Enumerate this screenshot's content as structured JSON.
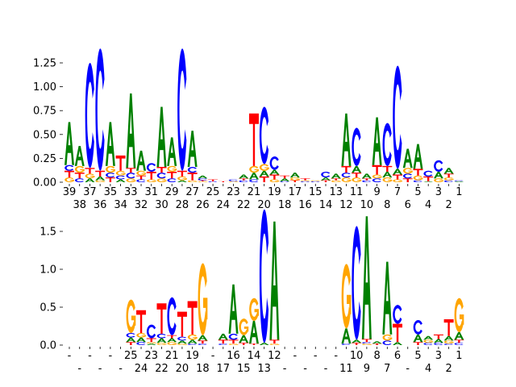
{
  "colors": {
    "A": "#008000",
    "C": "#0000ff",
    "G": "#ffa500",
    "T": "#ff0000"
  },
  "chart_data": [
    {
      "type": "logo",
      "ylim": [
        0,
        1.45
      ],
      "yticks": [
        "0.00",
        "0.25",
        "0.50",
        "0.75",
        "1.00",
        "1.25"
      ],
      "ytick_values": [
        0,
        0.25,
        0.5,
        0.75,
        1.0,
        1.25
      ],
      "xlabels": [
        "39",
        "38",
        "37",
        "36",
        "35",
        "34",
        "33",
        "32",
        "31",
        "30",
        "29",
        "28",
        "27",
        "26",
        "25",
        "24",
        "23",
        "22",
        "21",
        "20",
        "19",
        "18",
        "17",
        "16",
        "15",
        "14",
        "13",
        "12",
        "11",
        "10",
        "9",
        "8",
        "7",
        "6",
        "5",
        "4",
        "3",
        "2",
        "1"
      ],
      "stacks": [
        [
          [
            "G",
            0.05
          ],
          [
            "T",
            0.07
          ],
          [
            "C",
            0.06
          ],
          [
            "A",
            0.45
          ]
        ],
        [
          [
            "C",
            0.04
          ],
          [
            "T",
            0.06
          ],
          [
            "G",
            0.07
          ],
          [
            "A",
            0.21
          ]
        ],
        [
          [
            "A",
            0.04
          ],
          [
            "G",
            0.05
          ],
          [
            "T",
            0.06
          ],
          [
            "C",
            1.1
          ]
        ],
        [
          [
            "G",
            0.02
          ],
          [
            "A",
            0.04
          ],
          [
            "T",
            0.06
          ],
          [
            "C",
            1.28
          ]
        ],
        [
          [
            "T",
            0.05
          ],
          [
            "C",
            0.05
          ],
          [
            "G",
            0.07
          ],
          [
            "A",
            0.46
          ]
        ],
        [
          [
            "A",
            0.03
          ],
          [
            "C",
            0.04
          ],
          [
            "G",
            0.05
          ],
          [
            "T",
            0.16
          ]
        ],
        [
          [
            "G",
            0.04
          ],
          [
            "C",
            0.06
          ],
          [
            "T",
            0.05
          ],
          [
            "A",
            0.78
          ]
        ],
        [
          [
            "C",
            0.03
          ],
          [
            "T",
            0.04
          ],
          [
            "G",
            0.05
          ],
          [
            "A",
            0.21
          ]
        ],
        [
          [
            "G",
            0.03
          ],
          [
            "T",
            0.08
          ],
          [
            "C",
            0.09
          ]
        ],
        [
          [
            "G",
            0.04
          ],
          [
            "C",
            0.06
          ],
          [
            "T",
            0.06
          ],
          [
            "A",
            0.63
          ]
        ],
        [
          [
            "C",
            0.04
          ],
          [
            "T",
            0.07
          ],
          [
            "G",
            0.06
          ],
          [
            "A",
            0.3
          ]
        ],
        [
          [
            "A",
            0.02
          ],
          [
            "G",
            0.04
          ],
          [
            "T",
            0.06
          ],
          [
            "C",
            1.28
          ]
        ],
        [
          [
            "G",
            0.02
          ],
          [
            "T",
            0.08
          ],
          [
            "C",
            0.06
          ],
          [
            "A",
            0.38
          ]
        ],
        [
          [
            "G",
            0.01
          ],
          [
            "T",
            0.01
          ],
          [
            "C",
            0.02
          ],
          [
            "A",
            0.03
          ]
        ],
        [
          [
            "C",
            0.01
          ],
          [
            "T",
            0.02
          ]
        ],
        [
          [
            "T",
            0.01
          ]
        ],
        [
          [
            "G",
            0.01
          ],
          [
            "C",
            0.02
          ]
        ],
        [
          [
            "C",
            0.02
          ],
          [
            "T",
            0.02
          ],
          [
            "A",
            0.04
          ]
        ],
        [
          [
            "C",
            0.03
          ],
          [
            "A",
            0.07
          ],
          [
            "G",
            0.07
          ],
          [
            "T",
            0.55
          ]
        ],
        [
          [
            "T",
            0.06
          ],
          [
            "A",
            0.06
          ],
          [
            "G",
            0.07
          ],
          [
            "C",
            0.6
          ]
        ],
        [
          [
            "G",
            0.03
          ],
          [
            "T",
            0.05
          ],
          [
            "A",
            0.05
          ],
          [
            "C",
            0.14
          ]
        ],
        [
          [
            "C",
            0.01
          ],
          [
            "A",
            0.03
          ],
          [
            "T",
            0.03
          ]
        ],
        [
          [
            "T",
            0.02
          ],
          [
            "G",
            0.03
          ],
          [
            "A",
            0.05
          ]
        ],
        [
          [
            "C",
            0.01
          ],
          [
            "G",
            0.01
          ],
          [
            "T",
            0.02
          ]
        ],
        [
          [
            "C",
            0.01
          ],
          [
            "G",
            0.01
          ]
        ],
        [
          [
            "T",
            0.02
          ],
          [
            "A",
            0.03
          ],
          [
            "C",
            0.06
          ]
        ],
        [
          [
            "G",
            0.02
          ],
          [
            "T",
            0.02
          ],
          [
            "A",
            0.05
          ]
        ],
        [
          [
            "G",
            0.05
          ],
          [
            "C",
            0.05
          ],
          [
            "T",
            0.07
          ],
          [
            "A",
            0.55
          ]
        ],
        [
          [
            "G",
            0.05
          ],
          [
            "T",
            0.05
          ],
          [
            "A",
            0.07
          ],
          [
            "C",
            0.4
          ]
        ],
        [
          [
            "C",
            0.02
          ],
          [
            "T",
            0.02
          ],
          [
            "A",
            0.05
          ]
        ],
        [
          [
            "C",
            0.04
          ],
          [
            "G",
            0.04
          ],
          [
            "T",
            0.1
          ],
          [
            "A",
            0.5
          ]
        ],
        [
          [
            "G",
            0.05
          ],
          [
            "A",
            0.06
          ],
          [
            "T",
            0.06
          ],
          [
            "C",
            0.45
          ]
        ],
        [
          [
            "G",
            0.03
          ],
          [
            "T",
            0.05
          ],
          [
            "A",
            0.06
          ],
          [
            "C",
            1.08
          ]
        ],
        [
          [
            "T",
            0.04
          ],
          [
            "C",
            0.05
          ],
          [
            "G",
            0.06
          ],
          [
            "A",
            0.2
          ]
        ],
        [
          [
            "C",
            0.02
          ],
          [
            "G",
            0.05
          ],
          [
            "T",
            0.07
          ],
          [
            "A",
            0.26
          ]
        ],
        [
          [
            "A",
            0.01
          ],
          [
            "T",
            0.05
          ],
          [
            "C",
            0.06
          ]
        ],
        [
          [
            "G",
            0.04
          ],
          [
            "A",
            0.07
          ],
          [
            "C",
            0.12
          ]
        ],
        [
          [
            "C",
            0.02
          ],
          [
            "G",
            0.03
          ],
          [
            "T",
            0.04
          ],
          [
            "A",
            0.06
          ]
        ],
        [
          [
            "A",
            0.01
          ],
          [
            "C",
            0.01
          ]
        ]
      ]
    },
    {
      "type": "logo",
      "ylim": [
        0,
        1.85
      ],
      "yticks": [
        "0.0",
        "0.5",
        "1.0",
        "1.5"
      ],
      "ytick_values": [
        0,
        0.5,
        1.0,
        1.5
      ],
      "xlabels": [
        "-",
        "-",
        "-",
        "-",
        "-",
        "-",
        "25",
        "24",
        "23",
        "22",
        "21",
        "20",
        "19",
        "18",
        "-",
        "17",
        "16",
        "15",
        "14",
        "13",
        "12",
        "-",
        "-",
        "-",
        "-",
        "-",
        "-",
        "11",
        "10",
        "9",
        "8",
        "7",
        "6",
        "-",
        "5",
        "4",
        "3",
        "2",
        "1"
      ],
      "stacks": [
        [],
        [],
        [],
        [],
        [],
        [],
        [
          [
            "T",
            0.04
          ],
          [
            "A",
            0.06
          ],
          [
            "C",
            0.06
          ],
          [
            "G",
            0.44
          ]
        ],
        [
          [
            "C",
            0.04
          ],
          [
            "A",
            0.06
          ],
          [
            "G",
            0.06
          ],
          [
            "T",
            0.3
          ]
        ],
        [
          [
            "A",
            0.02
          ],
          [
            "G",
            0.02
          ],
          [
            "T",
            0.05
          ],
          [
            "C",
            0.18
          ]
        ],
        [
          [
            "G",
            0.03
          ],
          [
            "A",
            0.06
          ],
          [
            "C",
            0.06
          ],
          [
            "T",
            0.4
          ]
        ],
        [
          [
            "G",
            0.04
          ],
          [
            "A",
            0.05
          ],
          [
            "T",
            0.04
          ],
          [
            "C",
            0.5
          ]
        ],
        [
          [
            "G",
            0.02
          ],
          [
            "A",
            0.04
          ],
          [
            "C",
            0.05
          ],
          [
            "T",
            0.33
          ]
        ],
        [
          [
            "C",
            0.02
          ],
          [
            "A",
            0.05
          ],
          [
            "G",
            0.07
          ],
          [
            "T",
            0.44
          ]
        ],
        [
          [
            "C",
            0.02
          ],
          [
            "T",
            0.04
          ],
          [
            "A",
            0.07
          ],
          [
            "G",
            0.95
          ]
        ],
        [],
        [
          [
            "C",
            0.02
          ],
          [
            "T",
            0.05
          ],
          [
            "A",
            0.08
          ]
        ],
        [
          [
            "G",
            0.02
          ],
          [
            "T",
            0.05
          ],
          [
            "C",
            0.08
          ],
          [
            "A",
            0.65
          ]
        ],
        [
          [
            "T",
            0.03
          ],
          [
            "A",
            0.1
          ],
          [
            "G",
            0.22
          ]
        ],
        [
          [
            "T",
            0.02
          ],
          [
            "A",
            0.3
          ],
          [
            "G",
            0.3
          ]
        ],
        [
          [
            "A",
            0.03
          ],
          [
            "C",
            1.76
          ]
        ],
        [
          [
            "G",
            0.02
          ],
          [
            "T",
            0.05
          ],
          [
            "A",
            1.56
          ]
        ],
        [],
        [],
        [],
        [],
        [],
        [],
        [
          [
            "C",
            0.02
          ],
          [
            "A",
            0.2
          ],
          [
            "G",
            0.85
          ]
        ],
        [
          [
            "T",
            0.03
          ],
          [
            "A",
            0.04
          ],
          [
            "C",
            1.5
          ]
        ],
        [
          [
            "G",
            0.02
          ],
          [
            "C",
            0.02
          ],
          [
            "T",
            0.04
          ],
          [
            "A",
            1.62
          ]
        ],
        [
          [
            "T",
            0.02
          ],
          [
            "A",
            0.03
          ]
        ],
        [
          [
            "C",
            0.06
          ],
          [
            "G",
            0.08
          ],
          [
            "A",
            0.96
          ]
        ],
        [
          [
            "A",
            0.04
          ],
          [
            "T",
            0.24
          ],
          [
            "C",
            0.25
          ]
        ],
        [],
        [
          [
            "T",
            0.04
          ],
          [
            "A",
            0.1
          ],
          [
            "C",
            0.19
          ]
        ],
        [
          [
            "C",
            0.03
          ],
          [
            "G",
            0.04
          ],
          [
            "A",
            0.05
          ]
        ],
        [
          [
            "C",
            0.03
          ],
          [
            "A",
            0.05
          ],
          [
            "T",
            0.06
          ]
        ],
        [
          [
            "C",
            0.02
          ],
          [
            "G",
            0.04
          ],
          [
            "A",
            0.06
          ],
          [
            "T",
            0.22
          ]
        ],
        [
          [
            "C",
            0.03
          ],
          [
            "T",
            0.04
          ],
          [
            "A",
            0.1
          ],
          [
            "G",
            0.45
          ]
        ]
      ]
    }
  ]
}
